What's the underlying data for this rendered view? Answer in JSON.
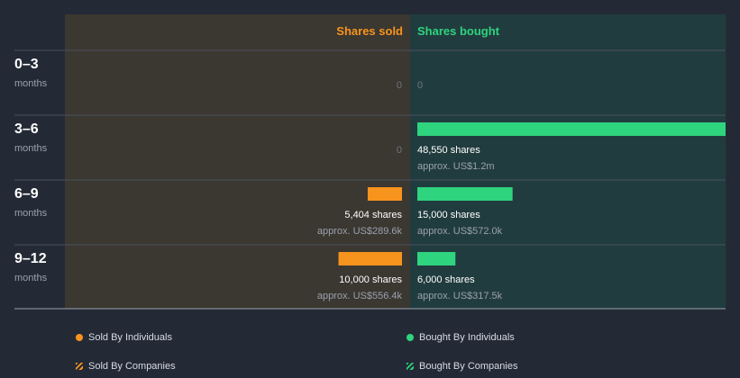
{
  "chart_data": {
    "type": "bar",
    "orientation": "horizontal-diverging",
    "headers": {
      "sold": "Shares sold",
      "bought": "Shares bought"
    },
    "unit_label": "months",
    "colors": {
      "sold": "#f7941d",
      "bought": "#2ed47e"
    },
    "rows": [
      {
        "period": "0–3",
        "sold": 0,
        "sold_label": "0",
        "sold_value": "",
        "bought": 0,
        "bought_label": "0",
        "bought_value": ""
      },
      {
        "period": "3–6",
        "sold": 0,
        "sold_label": "0",
        "sold_value": "",
        "bought": 48550,
        "bought_label": "48,550 shares",
        "bought_value": "approx. US$1.2m"
      },
      {
        "period": "6–9",
        "sold": 5404,
        "sold_label": "5,404 shares",
        "sold_value": "approx. US$289.6k",
        "bought": 15000,
        "bought_label": "15,000 shares",
        "bought_value": "approx. US$572.0k"
      },
      {
        "period": "9–12",
        "sold": 10000,
        "sold_label": "10,000 shares",
        "sold_value": "approx. US$556.4k",
        "bought": 6000,
        "bought_label": "6,000 shares",
        "bought_value": "approx. US$317.5k"
      }
    ],
    "max_shares": 48550,
    "legend": [
      {
        "label": "Sold By Individuals",
        "marker": "dot",
        "color": "#f7941d"
      },
      {
        "label": "Bought By Individuals",
        "marker": "dot",
        "color": "#2ed47e"
      },
      {
        "label": "Sold By Companies",
        "marker": "hatch",
        "color": "#f7941d"
      },
      {
        "label": "Bought By Companies",
        "marker": "hatch",
        "color": "#2ed47e"
      }
    ]
  }
}
